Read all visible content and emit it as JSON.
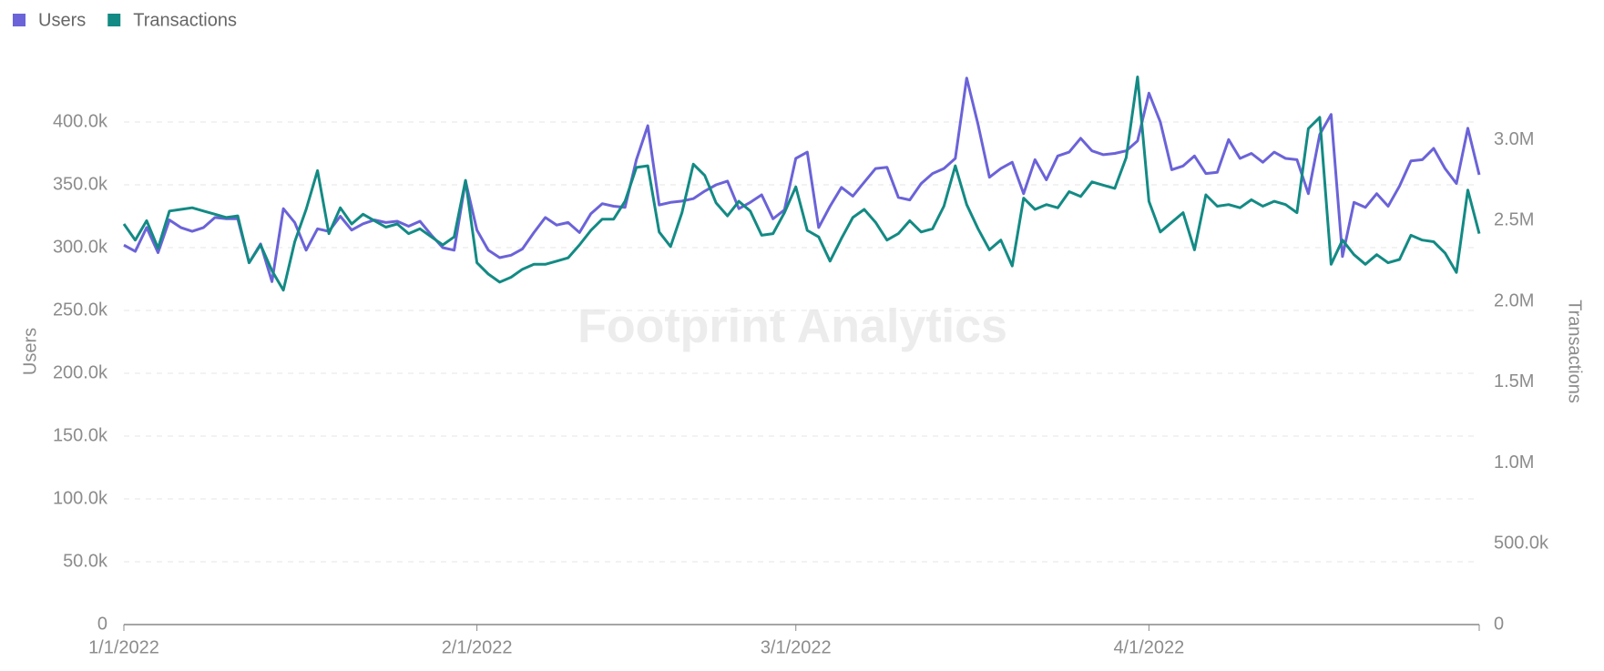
{
  "chart_data": {
    "type": "line",
    "watermark": "Footprint Analytics",
    "ylabel": "Users",
    "y2label": "Transactions",
    "categories": [
      "1/1/2022",
      null,
      null,
      null,
      null,
      null,
      null,
      null,
      null,
      null,
      null,
      null,
      null,
      null,
      null,
      null,
      null,
      null,
      null,
      null,
      null,
      null,
      null,
      null,
      null,
      null,
      null,
      null,
      null,
      null,
      null,
      "2/1/2022",
      null,
      null,
      null,
      null,
      null,
      null,
      null,
      null,
      null,
      null,
      null,
      null,
      null,
      null,
      null,
      null,
      null,
      null,
      null,
      null,
      null,
      null,
      null,
      null,
      null,
      null,
      null,
      "3/1/2022",
      null,
      null,
      null,
      null,
      null,
      null,
      null,
      null,
      null,
      null,
      null,
      null,
      null,
      null,
      null,
      null,
      null,
      null,
      null,
      null,
      null,
      null,
      null,
      null,
      null,
      null,
      null,
      null,
      null,
      null,
      "4/1/2022",
      null,
      null,
      null,
      null,
      null,
      null,
      null,
      null,
      null,
      null,
      null,
      null,
      null,
      null,
      null,
      null,
      null,
      null,
      null,
      null,
      null,
      null,
      null,
      null,
      null,
      null,
      null,
      null,
      null
    ],
    "series": [
      {
        "name": "Users",
        "color": "#6b63d8",
        "axis": "y",
        "values": [
          302000,
          297000,
          316000,
          296000,
          322000,
          316000,
          313000,
          316000,
          324000,
          323000,
          323000,
          288000,
          303000,
          273000,
          331000,
          320000,
          298000,
          315000,
          313000,
          325000,
          314000,
          319000,
          322000,
          320000,
          321000,
          317000,
          321000,
          310000,
          300000,
          298000,
          353000,
          314000,
          298000,
          292000,
          294000,
          299000,
          312000,
          324000,
          318000,
          320000,
          312000,
          327000,
          335000,
          333000,
          332000,
          370000,
          397000,
          334000,
          336000,
          337000,
          339000,
          345000,
          350000,
          353000,
          331000,
          336000,
          342000,
          323000,
          330000,
          371000,
          376000,
          316000,
          333000,
          348000,
          341000,
          352000,
          363000,
          364000,
          340000,
          338000,
          351000,
          359000,
          363000,
          371000,
          435000,
          398000,
          356000,
          363000,
          368000,
          343000,
          370000,
          354000,
          373000,
          376000,
          387000,
          377000,
          374000,
          375000,
          377000,
          385000,
          423000,
          400000,
          362000,
          365000,
          373000,
          359000,
          360000,
          386000,
          371000,
          375000,
          368000,
          376000,
          371000,
          370000,
          343000,
          390000,
          406000,
          293000,
          336000,
          332000,
          343000,
          333000,
          349000,
          369000,
          370000,
          379000,
          363000,
          351000,
          395000,
          358000
        ]
      },
      {
        "name": "Transactions",
        "color": "#138a84",
        "axis": "y2",
        "values": [
          2480000,
          2380000,
          2500000,
          2330000,
          2560000,
          2570000,
          2580000,
          2560000,
          2540000,
          2520000,
          2530000,
          2240000,
          2350000,
          2190000,
          2070000,
          2370000,
          2570000,
          2810000,
          2420000,
          2580000,
          2480000,
          2540000,
          2500000,
          2460000,
          2480000,
          2420000,
          2450000,
          2400000,
          2350000,
          2400000,
          2750000,
          2240000,
          2170000,
          2120000,
          2150000,
          2200000,
          2230000,
          2230000,
          2250000,
          2270000,
          2350000,
          2440000,
          2510000,
          2510000,
          2620000,
          2830000,
          2840000,
          2430000,
          2340000,
          2550000,
          2850000,
          2780000,
          2610000,
          2530000,
          2620000,
          2560000,
          2410000,
          2420000,
          2550000,
          2710000,
          2440000,
          2400000,
          2250000,
          2390000,
          2520000,
          2570000,
          2490000,
          2380000,
          2420000,
          2500000,
          2430000,
          2450000,
          2590000,
          2840000,
          2600000,
          2450000,
          2320000,
          2380000,
          2220000,
          2640000,
          2570000,
          2600000,
          2580000,
          2680000,
          2650000,
          2740000,
          2720000,
          2700000,
          2890000,
          3390000,
          2620000,
          2430000,
          2490000,
          2550000,
          2320000,
          2660000,
          2590000,
          2600000,
          2580000,
          2630000,
          2590000,
          2620000,
          2600000,
          2550000,
          3070000,
          3140000,
          2230000,
          2380000,
          2290000,
          2230000,
          2290000,
          2240000,
          2260000,
          2410000,
          2380000,
          2370000,
          2300000,
          2180000,
          2690000,
          2420000
        ]
      }
    ],
    "ylim": [
      0,
      450000
    ],
    "yticks": [
      0,
      {
        "value": 50000,
        "label": "50.0k"
      },
      {
        "value": 100000,
        "label": "100.0k"
      },
      {
        "value": 150000,
        "label": "150.0k"
      },
      {
        "value": 200000,
        "label": "200.0k"
      },
      {
        "value": 250000,
        "label": "250.0k"
      },
      {
        "value": 300000,
        "label": "300.0k"
      },
      {
        "value": 350000,
        "label": "350.0k"
      },
      {
        "value": 400000,
        "label": "400.0k"
      }
    ],
    "y2lim": [
      0,
      3500000
    ],
    "y2ticks": [
      0,
      {
        "value": 500000,
        "label": "500.0k"
      },
      {
        "value": 1000000,
        "label": "1.0M"
      },
      {
        "value": 1500000,
        "label": "1.5M"
      },
      {
        "value": 2000000,
        "label": "2.0M"
      },
      {
        "value": 2500000,
        "label": "2.5M"
      },
      {
        "value": 3000000,
        "label": "3.0M"
      }
    ],
    "grid": true,
    "legend": "top-left"
  }
}
